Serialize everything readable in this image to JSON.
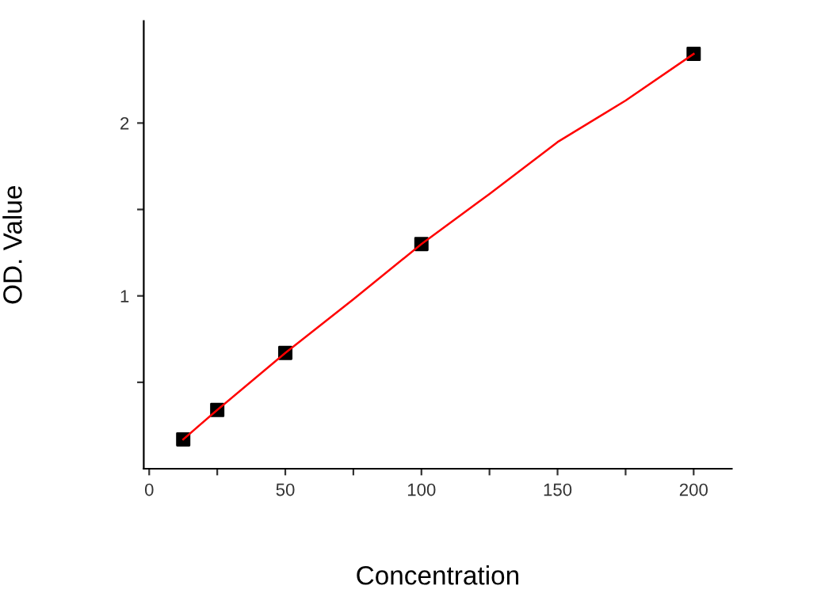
{
  "chart_data": {
    "type": "scatter",
    "xlabel": "Concentration",
    "ylabel": "OD. Value",
    "xlim": [
      -2,
      214
    ],
    "ylim": [
      0,
      2.59
    ],
    "xticks": [
      0,
      {
        "value": 25,
        "label": null
      },
      50,
      {
        "value": 75,
        "label": null
      },
      100,
      {
        "value": 125,
        "label": null
      },
      150,
      {
        "value": 175,
        "label": null
      },
      200
    ],
    "yticks": [
      {
        "value": 0.5,
        "label": null
      },
      1,
      {
        "value": 1.5,
        "label": null
      },
      2
    ],
    "grid": false,
    "legend": false,
    "marker": "square",
    "series": [
      {
        "type": "line",
        "color": "#ff0000",
        "x": [
          12.5,
          25,
          50,
          75,
          100,
          125,
          150,
          175,
          200
        ],
        "values": [
          0.17,
          0.34,
          0.67,
          0.98,
          1.3,
          1.59,
          1.89,
          2.13,
          2.4
        ],
        "line_style": "solid",
        "marker": "none"
      },
      {
        "color": "#000000",
        "x": [
          12.5,
          25,
          50,
          100,
          200
        ],
        "values": [
          0.17,
          0.34,
          0.67,
          1.3,
          2.4
        ]
      }
    ]
  }
}
